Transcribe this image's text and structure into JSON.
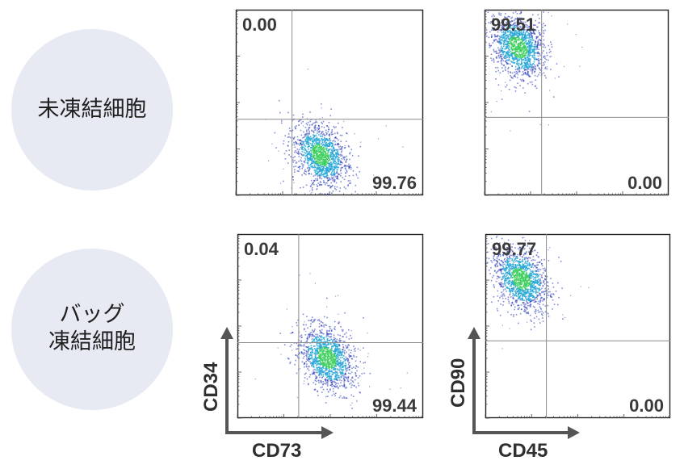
{
  "row_labels": {
    "row1": [
      "未凍結細胞"
    ],
    "row2": [
      "バッグ",
      "凍結細胞"
    ]
  },
  "axis_labels": {
    "cd73": "CD73",
    "cd34": "CD34",
    "cd45": "CD45",
    "cd90": "CD90"
  },
  "colors": {
    "circle": "#e7eaf3",
    "frame": "#222222",
    "gate_line": "#8a8a8a",
    "density_low": "#1b2fb5",
    "density_mid": "#2aa8d8",
    "density_high": "#3fcf5e"
  },
  "chart_data": [
    {
      "type": "scatter",
      "panel": "未凍結細胞 CD73 vs CD34",
      "xlabel": "CD73",
      "ylabel": "CD34",
      "quadrants": {
        "upper_left": "0.00",
        "lower_right": "99.76"
      },
      "population": {
        "center_x": 0.45,
        "center_y": 0.22,
        "location": "lower-right (CD73+ CD34-)"
      }
    },
    {
      "type": "scatter",
      "panel": "未凍結細胞 CD45 vs CD90",
      "xlabel": "CD45",
      "ylabel": "CD90",
      "quadrants": {
        "upper_left": "99.51",
        "lower_right": "0.00"
      },
      "population": {
        "center_x": 0.18,
        "center_y": 0.8,
        "location": "upper-left (CD45- CD90+)"
      }
    },
    {
      "type": "scatter",
      "panel": "バッグ凍結細胞 CD73 vs CD34",
      "xlabel": "CD73",
      "ylabel": "CD34",
      "quadrants": {
        "upper_left": "0.04",
        "lower_right": "99.44"
      },
      "population": {
        "center_x": 0.48,
        "center_y": 0.33,
        "location": "lower-right (CD73+ CD34-)"
      }
    },
    {
      "type": "scatter",
      "panel": "バッグ凍結細胞 CD45 vs CD90",
      "xlabel": "CD45",
      "ylabel": "CD90",
      "quadrants": {
        "upper_left": "99.77",
        "lower_right": "0.00"
      },
      "population": {
        "center_x": 0.19,
        "center_y": 0.76,
        "location": "upper-left (CD45- CD90+)"
      }
    }
  ]
}
